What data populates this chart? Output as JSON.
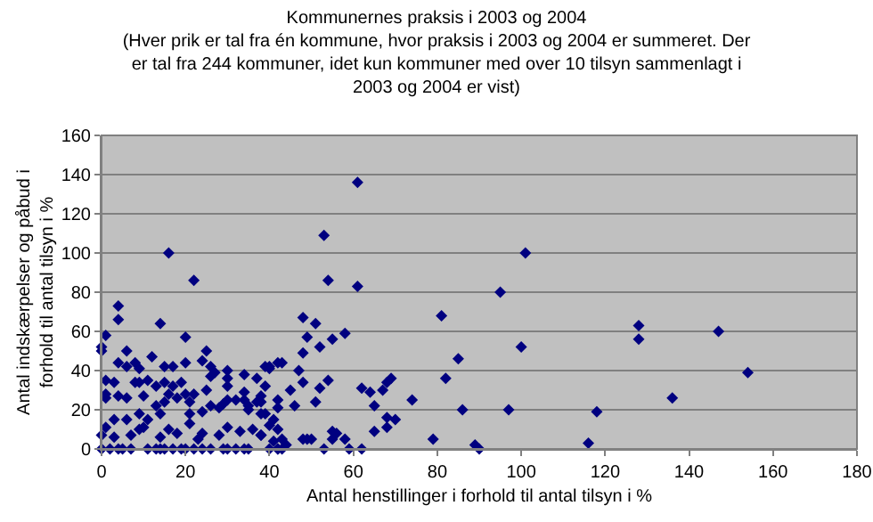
{
  "chart_data": {
    "type": "scatter",
    "title": "Kommunernes praksis i 2003 og 2004",
    "subtitle": "(Hver prik er tal fra én kommune, hvor praksis i 2003 og 2004 er summeret. Der er tal fra 244 kommuner, idet kun kommuner med over 10 tilsyn sammenlagt i 2003 og 2004 er vist)",
    "xlabel": "Antal henstillinger i forhold til antal tilsyn i %",
    "ylabel": "Antal indskærpelser og påbud i forhold til antal tilsyn i %",
    "series": [
      {
        "color": "#000080",
        "x": [
          101,
          95,
          100,
          97,
          118,
          116,
          128,
          128,
          136,
          147,
          154,
          61,
          53,
          54,
          61,
          48,
          51,
          49,
          58,
          55,
          52,
          48,
          42,
          40,
          47,
          45,
          48,
          54,
          52,
          62,
          64,
          67,
          69,
          68,
          65,
          74,
          51,
          46,
          42,
          42,
          81,
          85,
          82,
          86,
          68,
          70,
          65,
          68,
          79,
          89,
          90,
          55,
          56,
          55,
          58,
          48,
          49,
          50,
          53,
          59,
          62,
          43,
          44,
          42,
          43,
          40,
          41,
          39,
          42,
          38,
          16,
          22,
          4,
          4,
          14,
          1,
          0,
          0,
          6,
          20,
          25,
          12,
          24,
          20,
          15,
          17,
          4,
          6,
          8,
          9,
          1,
          3,
          8,
          9,
          11,
          13,
          15,
          17,
          19,
          16,
          20,
          18,
          6,
          4,
          1,
          1,
          10,
          13,
          15,
          21,
          22,
          25,
          26,
          26,
          27,
          24,
          21,
          26,
          28,
          29,
          30,
          32,
          30,
          30,
          30,
          34,
          34,
          35,
          35,
          37,
          38,
          34,
          39,
          40,
          43,
          37,
          39,
          38,
          38,
          0,
          2,
          4,
          5,
          7,
          11,
          13,
          14,
          15,
          17,
          19,
          20,
          22,
          24,
          26,
          29,
          30,
          32,
          34,
          35,
          40,
          42,
          0,
          1,
          3,
          7,
          9,
          10,
          14,
          16,
          18,
          21,
          23,
          24,
          28,
          30,
          33,
          36,
          38,
          41,
          14,
          11,
          9,
          6,
          3
        ],
        "values": [
          100,
          80,
          52,
          20,
          19,
          3,
          63,
          56,
          26,
          60,
          39,
          136,
          109,
          86,
          83,
          67,
          64,
          57,
          59,
          56,
          52,
          49,
          44,
          41,
          40,
          30,
          34,
          35,
          31,
          31,
          29,
          30,
          36,
          34,
          22,
          25,
          24,
          22,
          21,
          25,
          68,
          46,
          36,
          20,
          16,
          15,
          9,
          11,
          5,
          2,
          0,
          9,
          8,
          5,
          5,
          5,
          5,
          5,
          0,
          0,
          0,
          5,
          2,
          0,
          0,
          12,
          15,
          18,
          10,
          7,
          100,
          86,
          73,
          66,
          64,
          58,
          52,
          50,
          50,
          57,
          50,
          47,
          45,
          44,
          42,
          42,
          44,
          42,
          44,
          41,
          35,
          34,
          34,
          34,
          35,
          32,
          34,
          32,
          34,
          28,
          28,
          26,
          26,
          27,
          28,
          26,
          27,
          22,
          24,
          24,
          28,
          30,
          37,
          42,
          39,
          19,
          18,
          22,
          21,
          23,
          25,
          25,
          32,
          36,
          40,
          29,
          25,
          22,
          20,
          24,
          24,
          38,
          42,
          42,
          44,
          36,
          32,
          18,
          27,
          0,
          0,
          0,
          0,
          0,
          0,
          0,
          0,
          0,
          0,
          0,
          0,
          0,
          0,
          0,
          0,
          0,
          0,
          0,
          0,
          0,
          0,
          7,
          11,
          6,
          7,
          10,
          11,
          6,
          10,
          8,
          13,
          5,
          8,
          7,
          11,
          9,
          10,
          7,
          4,
          18,
          15,
          18,
          15,
          15
        ]
      }
    ],
    "xlim": [
      0,
      180
    ],
    "xticks": [
      0,
      20,
      40,
      60,
      80,
      100,
      120,
      140,
      160,
      180
    ],
    "ylim": [
      0,
      160
    ],
    "yticks": [
      0,
      20,
      40,
      60,
      80,
      100,
      120,
      140,
      160
    ],
    "grid": "y",
    "marker": "diamond"
  }
}
